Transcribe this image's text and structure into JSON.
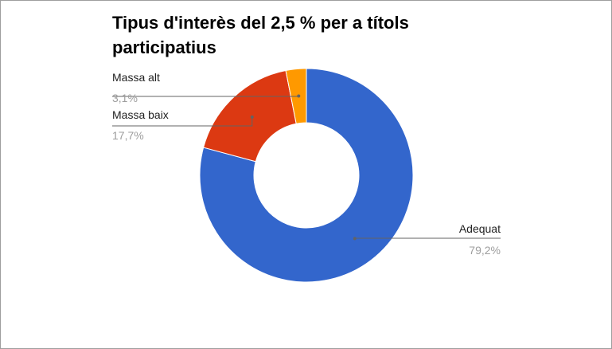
{
  "chart_data": {
    "type": "pie",
    "title": "Tipus d'interès del 2,5 % per a títols participatius",
    "donut": true,
    "legend": "labeled slices",
    "slices": [
      {
        "label": "Adequat",
        "value": 79.2,
        "display": "79,2%",
        "color": "#3366cc"
      },
      {
        "label": "Massa baix",
        "value": 17.7,
        "display": "17,7%",
        "color": "#dc3912"
      },
      {
        "label": "Massa alt",
        "value": 3.1,
        "display": "3,1%",
        "color": "#ff9900"
      }
    ]
  }
}
